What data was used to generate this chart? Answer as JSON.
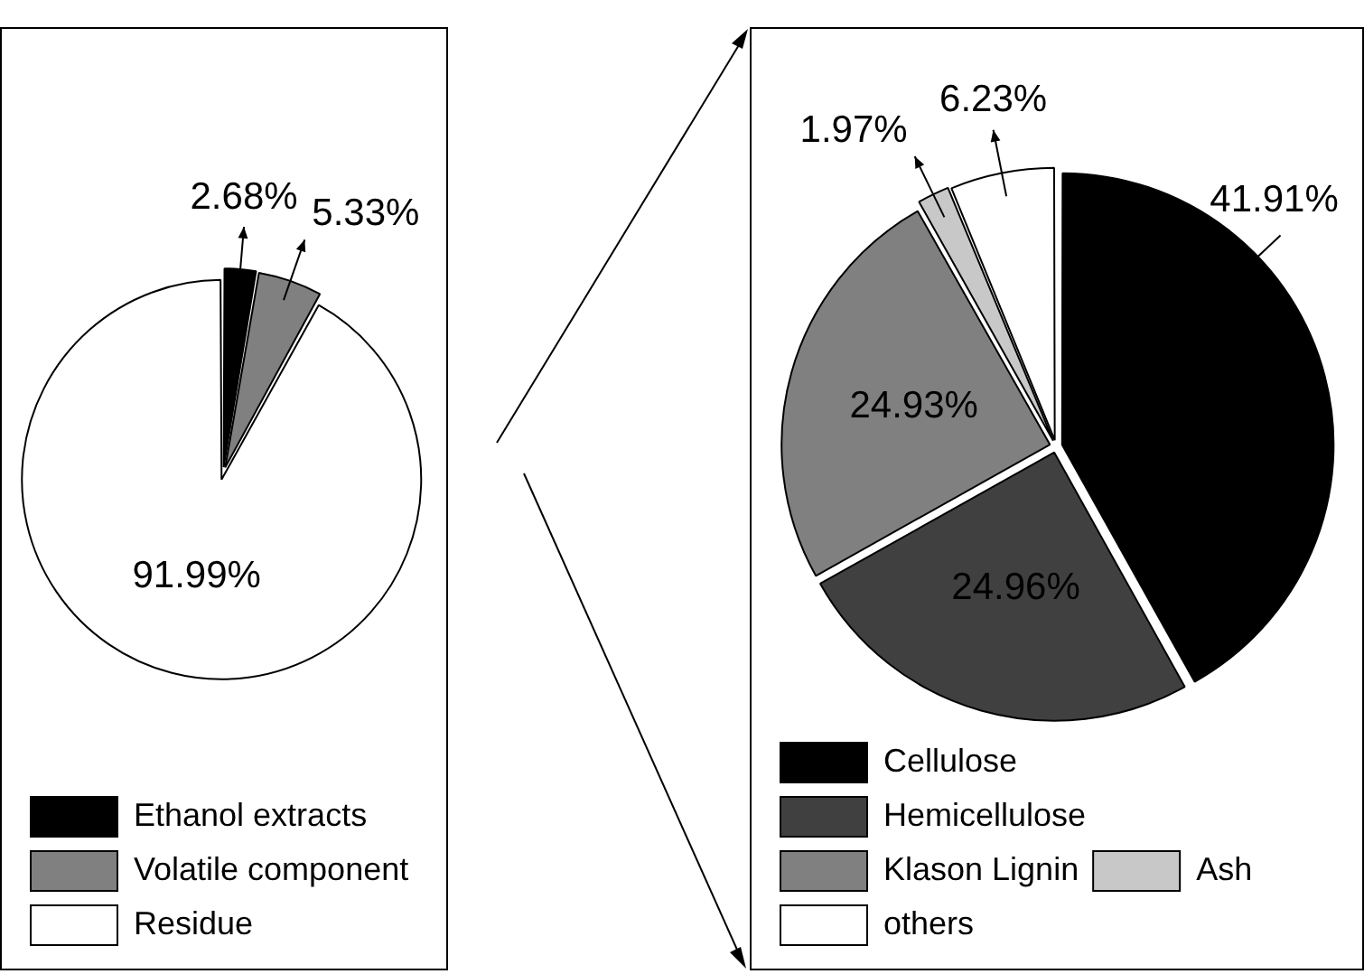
{
  "chart_data": [
    {
      "type": "pie",
      "categories": [
        "Ethanol extracts",
        "Volatile component",
        "Residue"
      ],
      "values": [
        2.68,
        5.33,
        91.99
      ],
      "value_labels": [
        "2.68%",
        "5.33%",
        "91.99%"
      ],
      "colors": [
        "#000000",
        "#808080",
        "#ffffff"
      ],
      "legend": "bottom left"
    },
    {
      "type": "pie",
      "categories": [
        "Cellulose",
        "Hemicellulose",
        "Klason Lignin",
        "Ash",
        "others"
      ],
      "values": [
        41.91,
        24.96,
        24.93,
        1.97,
        6.23
      ],
      "value_labels": [
        "41.91%",
        "24.96%",
        "24.93%",
        "1.97%",
        "6.23%"
      ],
      "colors": [
        "#000000",
        "#404040",
        "#808080",
        "#c8c8c8",
        "#ffffff"
      ],
      "legend": "bottom left"
    }
  ]
}
